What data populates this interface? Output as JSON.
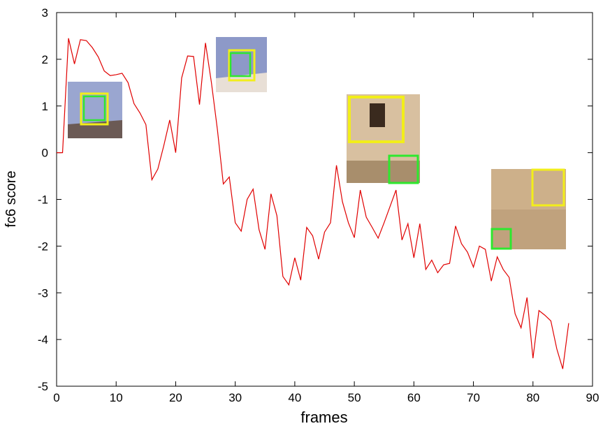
{
  "chart_data": {
    "type": "line",
    "xlabel": "frames",
    "ylabel": "fc6 score",
    "x": [
      0,
      1,
      2,
      3,
      4,
      5,
      6,
      7,
      8,
      9,
      10,
      11,
      12,
      13,
      14,
      15,
      16,
      17,
      18,
      19,
      20,
      21,
      22,
      23,
      24,
      25,
      26,
      27,
      28,
      29,
      30,
      31,
      32,
      33,
      34,
      35,
      36,
      37,
      38,
      39,
      40,
      41,
      42,
      43,
      44,
      45,
      46,
      47,
      48,
      49,
      50,
      51,
      52,
      53,
      54,
      55,
      56,
      57,
      58,
      59,
      60,
      61,
      62,
      63,
      64,
      65,
      66,
      67,
      68,
      69,
      70,
      71,
      72,
      73,
      74,
      75,
      76,
      77,
      78,
      79,
      80,
      81,
      82,
      83,
      84,
      85,
      86
    ],
    "values": [
      0,
      0,
      2.45,
      1.9,
      2.42,
      2.4,
      2.25,
      2.05,
      1.75,
      1.65,
      1.67,
      1.7,
      1.5,
      1.05,
      0.85,
      0.6,
      -0.58,
      -0.35,
      0.15,
      0.7,
      0.0,
      1.6,
      2.07,
      2.06,
      1.03,
      2.35,
      1.5,
      0.5,
      -0.67,
      -0.52,
      -1.5,
      -1.68,
      -1.0,
      -0.78,
      -1.65,
      -2.07,
      -0.88,
      -1.35,
      -2.65,
      -2.83,
      -2.25,
      -2.73,
      -1.6,
      -1.78,
      -2.28,
      -1.7,
      -1.5,
      -0.27,
      -1.05,
      -1.5,
      -1.82,
      -0.8,
      -1.38,
      -1.6,
      -1.83,
      -1.5,
      -1.15,
      -0.8,
      -1.87,
      -1.52,
      -2.25,
      -1.52,
      -2.5,
      -2.3,
      -2.57,
      -2.4,
      -2.37,
      -1.57,
      -1.95,
      -2.13,
      -2.45,
      -2.0,
      -2.07,
      -2.75,
      -2.23,
      -2.5,
      -2.67,
      -3.45,
      -3.75,
      -3.1,
      -4.4,
      -3.38,
      -3.48,
      -3.6,
      -4.2,
      -4.63,
      -3.65
    ],
    "color": "#e00000",
    "xlim": [
      0,
      90
    ],
    "xticks": [
      0,
      10,
      20,
      30,
      40,
      50,
      60,
      70,
      80,
      90
    ],
    "ylim": [
      -5,
      3
    ],
    "yticks": [
      -5,
      -4,
      -3,
      -2,
      -1,
      0,
      1,
      2,
      3
    ]
  }
}
